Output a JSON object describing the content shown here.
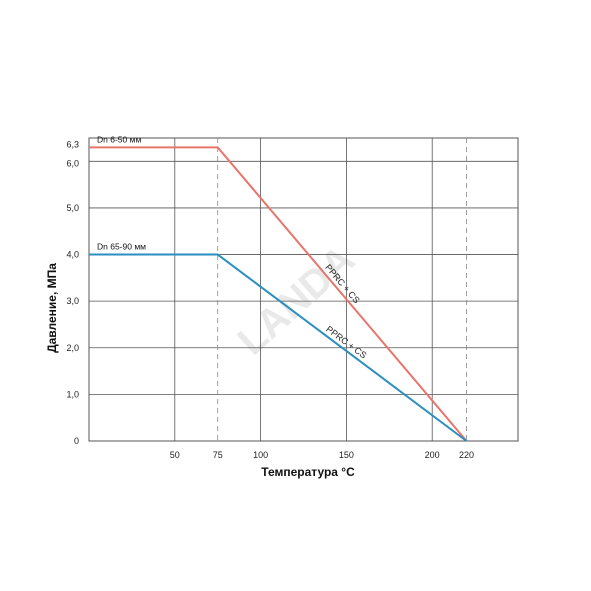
{
  "chart_data": {
    "type": "line",
    "title": "",
    "xlabel": "Температура °C",
    "ylabel": "Давление, МПа",
    "xlim": [
      0,
      250
    ],
    "ylim": [
      0,
      6.5
    ],
    "x_ticks": [
      {
        "value": 50,
        "label": "50"
      },
      {
        "value": 75,
        "label": "75"
      },
      {
        "value": 100,
        "label": "100"
      },
      {
        "value": 150,
        "label": "150"
      },
      {
        "value": 200,
        "label": "200"
      },
      {
        "value": 220,
        "label": "220"
      }
    ],
    "y_ticks": [
      {
        "value": 0,
        "label": "0"
      },
      {
        "value": 1,
        "label": "1,0"
      },
      {
        "value": 2,
        "label": "2,0"
      },
      {
        "value": 3,
        "label": "3,0"
      },
      {
        "value": 4,
        "label": "4,0"
      },
      {
        "value": 5,
        "label": "5,0"
      },
      {
        "value": 6,
        "label": "6,0"
      },
      {
        "value": 6.3,
        "label": "6,3"
      }
    ],
    "solid_gridlines_x": [
      50,
      100,
      150,
      200,
      250
    ],
    "dashed_gridlines_x": [
      75,
      220
    ],
    "gridlines_y": [
      1,
      2,
      3,
      4,
      5,
      6
    ],
    "series": [
      {
        "name": "Dn 6-50 мм",
        "line_label": "PPRC + CS",
        "color": "#e8746a",
        "x": [
          0,
          75,
          220
        ],
        "y": [
          6.3,
          6.3,
          0
        ]
      },
      {
        "name": "Dn 65-90 мм",
        "line_label": "PPRC + CS",
        "color": "#2a8fbf",
        "x": [
          0,
          75,
          220
        ],
        "y": [
          4.0,
          4.0,
          0
        ]
      }
    ],
    "watermark": "LANDA"
  }
}
